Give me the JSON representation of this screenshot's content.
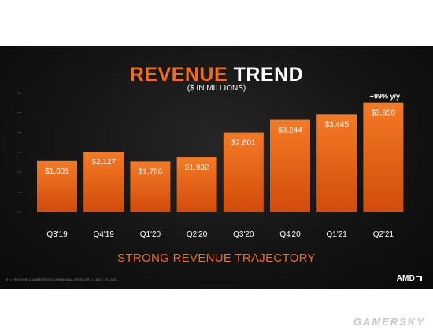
{
  "slide": {
    "title_part1": "REVENUE",
    "title_part2": "TREND",
    "subtitle": "($ IN MILLIONS)",
    "tagline": "STRONG REVENUE TRAJECTORY",
    "footer_page": "9",
    "footer_text": "SECOND QUARTER 2021 FINANCIAL RESULTS",
    "footer_date": "JULY 27, 2021",
    "logo_text": "AMD"
  },
  "watermark": "GAMERSKY",
  "colors": {
    "accent": "#f26b1d",
    "bar_light": "#f47a25",
    "bar_dark": "#d24c0b",
    "background": "#151515"
  },
  "chart_data": {
    "type": "bar",
    "title": "REVENUE TREND",
    "subtitle": "($ IN MILLIONS)",
    "categories": [
      "Q3'19",
      "Q4'19",
      "Q1'20",
      "Q2'20",
      "Q3'20",
      "Q4'20",
      "Q1'21",
      "Q2'21"
    ],
    "values": [
      1801,
      2127,
      1786,
      1932,
      2801,
      3244,
      3445,
      3850
    ],
    "value_labels": [
      "$1,801",
      "$2,127",
      "$1,786",
      "$1,932",
      "$2,801",
      "$3,244",
      "$3,445",
      "$3,850"
    ],
    "annotation": {
      "category": "Q2'21",
      "text": "+99% y/y"
    },
    "ylim": [
      0,
      4200
    ],
    "grid": false,
    "legend": "none"
  }
}
